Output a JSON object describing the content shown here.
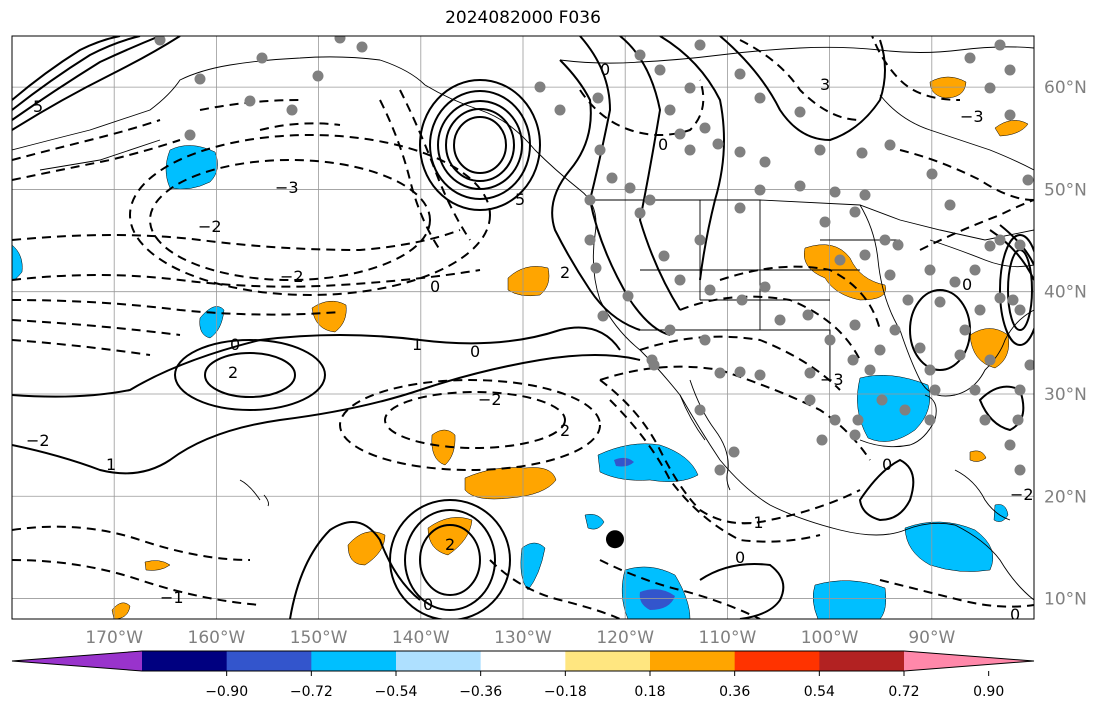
{
  "title": "2024082000 F036",
  "map": {
    "lon_ticks": [
      {
        "label": "170°W",
        "lon": -170
      },
      {
        "label": "160°W",
        "lon": -160
      },
      {
        "label": "150°W",
        "lon": -150
      },
      {
        "label": "140°W",
        "lon": -140
      },
      {
        "label": "130°W",
        "lon": -130
      },
      {
        "label": "120°W",
        "lon": -120
      },
      {
        "label": "110°W",
        "lon": -110
      },
      {
        "label": "100°W",
        "lon": -100
      },
      {
        "label": "90°W",
        "lon": -90
      }
    ],
    "lat_ticks": [
      {
        "label": "60°N",
        "lat": 60
      },
      {
        "label": "50°N",
        "lat": 50
      },
      {
        "label": "40°N",
        "lat": 40
      },
      {
        "label": "30°N",
        "lat": 30
      },
      {
        "label": "20°N",
        "lat": 20
      },
      {
        "label": "10°N",
        "lat": 10
      }
    ],
    "lon_range": [
      -180,
      -80
    ],
    "lat_range": [
      8,
      65
    ],
    "grid": true,
    "marker": {
      "lon": -121.0,
      "lat": 15.8,
      "name": "black-dot-marker"
    }
  },
  "colorbar": {
    "labels": [
      "−0.90",
      "−0.72",
      "−0.54",
      "−0.36",
      "−0.18",
      "0.18",
      "0.36",
      "0.54",
      "0.72",
      "0.90"
    ],
    "colors": [
      "#9933cc",
      "#000080",
      "#3355cc",
      "#00bfff",
      "#aee0ff",
      "#ffffff",
      "#ffe680",
      "#ffa500",
      "#ff3300",
      "#b22222",
      "#ff88aa"
    ],
    "extend": "both"
  },
  "contour_labels": [
    "5",
    "3",
    "2",
    "0",
    "−2",
    "−3",
    "1",
    "−1"
  ],
  "colors": {
    "orange": "#ffa500",
    "blue": "#00bfff",
    "navy": "#3355cc",
    "dot": "#808080"
  }
}
